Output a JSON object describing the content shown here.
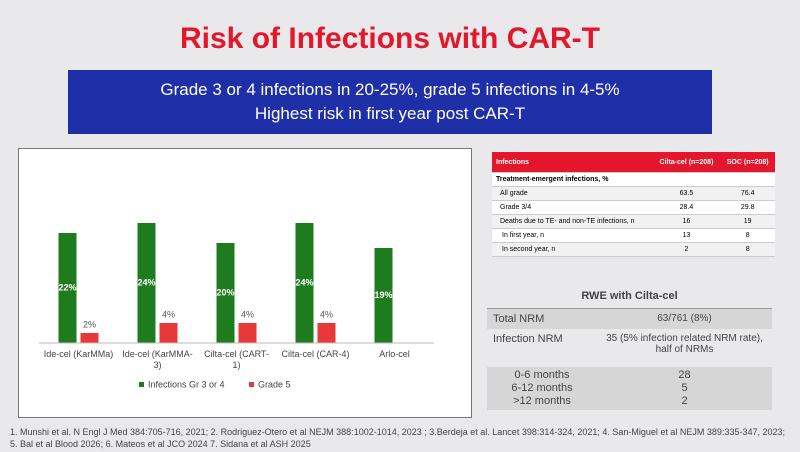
{
  "title": "Risk of Infections with CAR-T",
  "banner": [
    "Grade 3 or 4 infections in 20-25%, grade 5 infections in 4-5%",
    "Highest risk in first year post CAR-T"
  ],
  "chart_data": {
    "type": "bar",
    "categories": [
      "Ide-cel (KarMMa)",
      "Ide-cel (KarMMA-3)",
      "Cilta-cel (CART-1)",
      "Cilta-cel (CAR-4)",
      "Arlo-cel"
    ],
    "series": [
      {
        "name": "Infections Gr 3 or 4",
        "color": "#1e7b1e",
        "values": [
          22,
          24,
          20,
          24,
          19
        ],
        "value_labels": [
          "22%",
          "24%",
          "20%",
          "24%",
          "19%"
        ]
      },
      {
        "name": "Grade 5",
        "color": "#e8393a",
        "values": [
          2,
          4,
          4,
          4,
          null
        ],
        "value_labels": [
          "2%",
          "4%",
          "4%",
          "4%",
          null
        ]
      }
    ]
  },
  "table": {
    "header": [
      "Infections",
      "Cilta-cel (n=208)",
      "SOC (n=208)"
    ],
    "section": "Treatment-emergent infections, %",
    "rows": [
      [
        "All grade",
        63.5,
        76.4
      ],
      [
        "Grade 3/4",
        28.4,
        29.8
      ],
      [
        "Deaths due to TE- and non-TE infections, n",
        16,
        19
      ],
      [
        "In first year, n",
        13,
        8
      ],
      [
        "In second year, n",
        2,
        8
      ]
    ]
  },
  "rwe": {
    "title": "RWE with Cilta-cel",
    "rows": [
      [
        "Total NRM",
        "63/761 (8%)"
      ],
      [
        "Infection NRM",
        "35 (5% infection related NRM rate), half of NRMs"
      ]
    ],
    "breakdown": [
      [
        "0-6 months",
        28
      ],
      [
        "6-12 months",
        5
      ],
      [
        ">12 months",
        2
      ]
    ]
  },
  "footnote": "1. Munshi et al. N Engl J Med 384:705-716, 2021; 2. Rodriguez-Otero et al NEJM 388:1002-1014, 2023 ; 3.Berdeja et al. Lancet 398:314-324, 2021; 4. San-Miguel et al NEJM 389:335-347, 2023; 5. Bal et al Blood 2026; 6. Mateos et al JCO 2024 7. Sidana et al ASH 2025"
}
